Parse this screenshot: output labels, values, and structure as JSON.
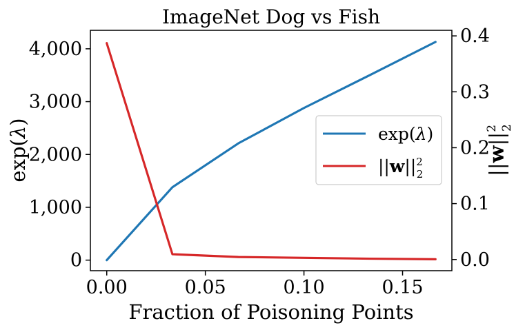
{
  "chart_data": {
    "type": "line",
    "title": "ImageNet Dog vs Fish",
    "xlabel": "Fraction of Poisoning Points",
    "ylabel_left": "exp(λ)",
    "ylabel_right": "||w||²₂",
    "xlim": [
      -0.0083,
      0.175
    ],
    "ylim_left": [
      -200,
      4350
    ],
    "ylim_right": [
      -0.02,
      0.41
    ],
    "x_ticks": [
      0.0,
      0.05,
      0.1,
      0.15
    ],
    "x_tick_labels": [
      "0.00",
      "0.05",
      "0.10",
      "0.15"
    ],
    "y_left_ticks": [
      0,
      1000,
      2000,
      3000,
      4000
    ],
    "y_left_tick_labels": [
      "0",
      "1,000",
      "2,000",
      "3,000",
      "4,000"
    ],
    "y_right_ticks": [
      0.0,
      0.1,
      0.2,
      0.3,
      0.4
    ],
    "y_right_tick_labels": [
      "0.0",
      "0.1",
      "0.2",
      "0.3",
      "0.4"
    ],
    "legend_position": "center-right",
    "grid": false,
    "series": [
      {
        "name": "exp(λ)",
        "axis": "left",
        "color": "#1f77b4",
        "x": [
          0.0,
          0.0333,
          0.0667,
          0.1,
          0.1333,
          0.1667
        ],
        "values": [
          0,
          1380,
          2210,
          2880,
          3500,
          4130
        ]
      },
      {
        "name": "||w||²₂",
        "axis": "right",
        "color": "#d62728",
        "x": [
          0.0,
          0.0333,
          0.0667,
          0.1,
          0.1333,
          0.1667
        ],
        "values": [
          0.387,
          0.0095,
          0.0045,
          0.003,
          0.0015,
          0.0005
        ]
      }
    ]
  }
}
